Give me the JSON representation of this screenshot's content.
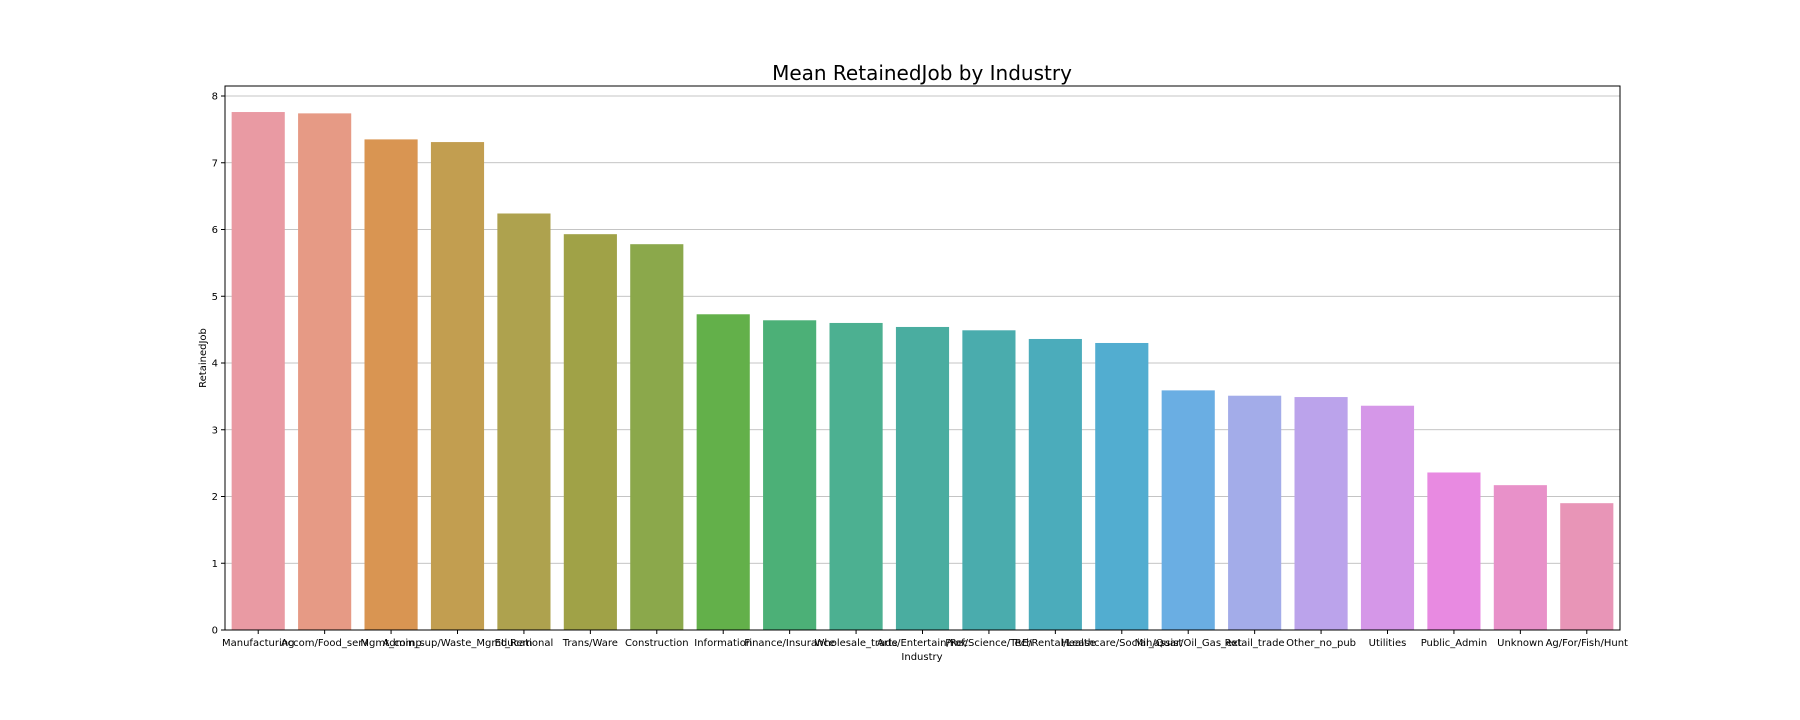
{
  "chart_data": {
    "type": "bar",
    "title": "Mean RetainedJob by Industry",
    "xlabel": "Industry",
    "ylabel": "RetainedJob",
    "ylim": [
      0,
      8.15
    ],
    "yticks": [
      0,
      1,
      2,
      3,
      4,
      5,
      6,
      7,
      8
    ],
    "grid": "y",
    "categories": [
      "Manufacturing",
      "Accom/Food_serv",
      "Mgmt_comp",
      "Admin_sup/Waste_Mgmt_Rem",
      "Educational",
      "Trans/Ware",
      "Construction",
      "Information",
      "Finance/Insurance",
      "Wholesale_trade",
      "Arts/Entertain/Rec",
      "Prof/Science/Tech",
      "RE/Rental/Lease",
      "Healthcare/Social_assist",
      "Min/Quar/Oil_Gas_ext",
      "Retail_trade",
      "Other_no_pub",
      "Utilities",
      "Public_Admin",
      "Unknown",
      "Ag/For/Fish/Hunt"
    ],
    "values": [
      7.76,
      7.74,
      7.35,
      7.31,
      6.24,
      5.93,
      5.78,
      4.73,
      4.64,
      4.6,
      4.54,
      4.49,
      4.36,
      4.3,
      3.59,
      3.51,
      3.49,
      3.36,
      2.36,
      2.17,
      1.9
    ],
    "colors": [
      "#e99aa3",
      "#e69a85",
      "#d99552",
      "#c29e50",
      "#aea24e",
      "#a0a247",
      "#8ba84b",
      "#63b04a",
      "#4cb077",
      "#4cb091",
      "#4aada0",
      "#4aacad",
      "#4bacbb",
      "#52add0",
      "#6aaee3",
      "#a3ace9",
      "#bba3eb",
      "#d597e8",
      "#e88ae1",
      "#e891c9",
      "#e895b7"
    ]
  }
}
